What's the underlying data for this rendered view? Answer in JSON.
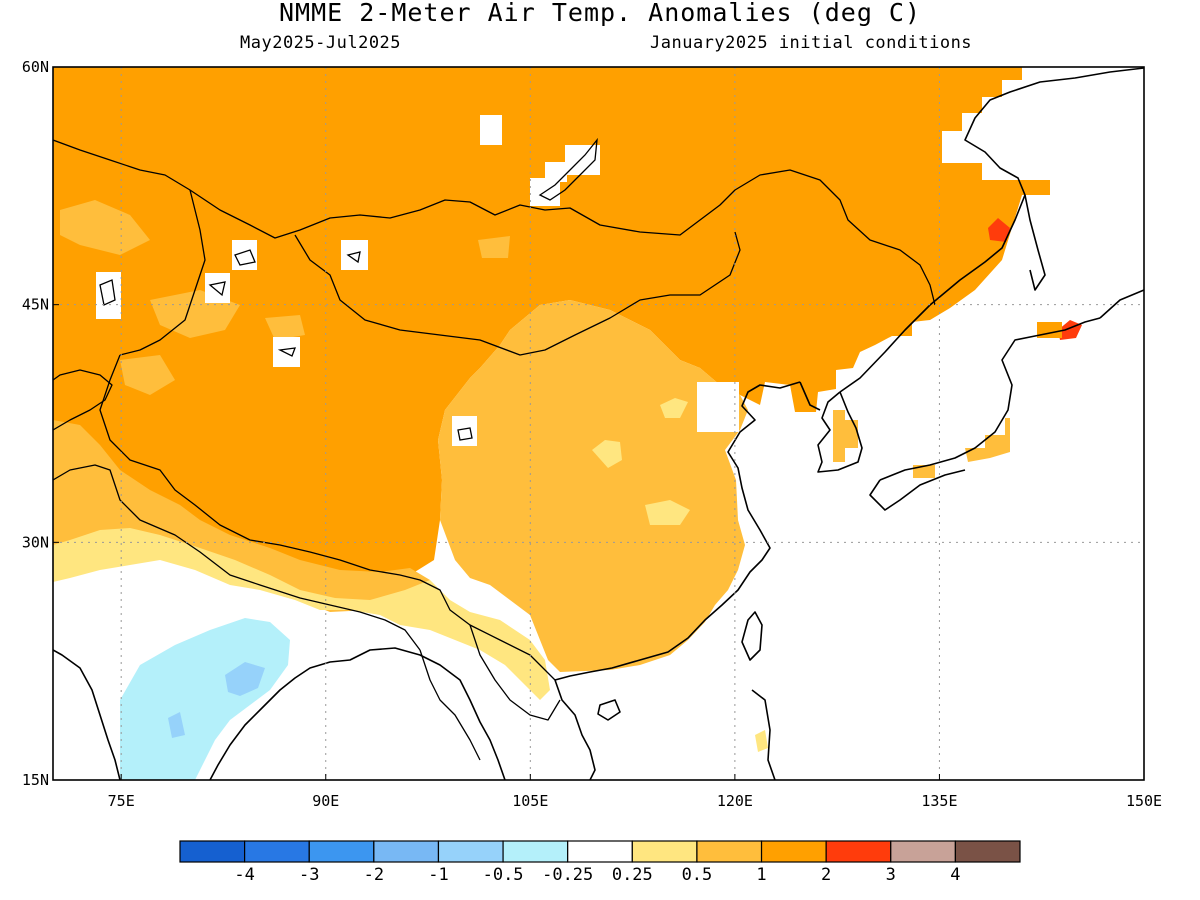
{
  "title": "NMME 2-Meter Air Temp. Anomalies (deg C)",
  "valid_period": "May2025-Jul2025",
  "initial_conditions": "January2025 initial conditions",
  "map": {
    "projection": "lat-lon",
    "lon_range": [
      70,
      150
    ],
    "lat_range": [
      15,
      60
    ],
    "lon_ticks": [
      {
        "value": 75,
        "label": "75E"
      },
      {
        "value": 90,
        "label": "90E"
      },
      {
        "value": 105,
        "label": "105E"
      },
      {
        "value": 120,
        "label": "120E"
      },
      {
        "value": 135,
        "label": "135E"
      },
      {
        "value": 150,
        "label": "150E"
      }
    ],
    "lat_ticks": [
      {
        "value": 15,
        "label": "15N"
      },
      {
        "value": 30,
        "label": "30N"
      },
      {
        "value": 45,
        "label": "45N"
      },
      {
        "value": 60,
        "label": "60N"
      }
    ],
    "gridlines": "dotted",
    "ocean_color": "#ffffff",
    "coastline_color": "#000000"
  },
  "colorbar": {
    "levels": [
      {
        "color": "#1560d0"
      },
      {
        "color": "#2878e4"
      },
      {
        "color": "#3c96f0"
      },
      {
        "color": "#78b8f4"
      },
      {
        "color": "#96d2fa"
      },
      {
        "color": "#b4f0fa"
      },
      {
        "color": "#ffffff"
      },
      {
        "color": "#ffe680"
      },
      {
        "color": "#ffbe3c"
      },
      {
        "color": "#ffa000"
      },
      {
        "color": "#ff3c0c"
      },
      {
        "color": "#c8a298"
      },
      {
        "color": "#7a5246"
      }
    ],
    "labels": [
      "-4",
      "-3",
      "-2",
      "-1",
      "-0.5",
      "-0.25",
      "0.25",
      "0.5",
      "1",
      "2",
      "3",
      "4"
    ]
  },
  "anomaly_regions": [
    {
      "name": "Siberia-Mongolia-Tibet warm core",
      "category": "1 to 2",
      "color": "#ffa000"
    },
    {
      "name": "Eastern China moderate warmth",
      "category": "0.5 to 1",
      "color": "#ffbe3c"
    },
    {
      "name": "Southern China and Himalaya weak warmth",
      "category": "0.25 to 0.5",
      "color": "#ffe680"
    },
    {
      "name": "Central India slight cooling",
      "category": "-0.5 to -0.25",
      "color": "#b4f0fa"
    },
    {
      "name": "Central India cool core",
      "category": "-1 to -0.5",
      "color": "#96d2fa"
    },
    {
      "name": "Sakhalin and Hokkaido hotspots",
      "category": "2 to 3",
      "color": "#ff3c0c"
    }
  ]
}
